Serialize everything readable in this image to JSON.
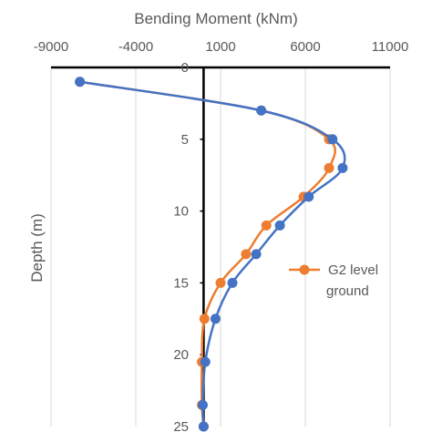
{
  "chart_data": {
    "type": "line",
    "xlabel": "Bending Moment (kNm)",
    "ylabel": "Depth (m)",
    "x_axis_position": "top",
    "y_axis_inverted": true,
    "xlim": [
      -9000,
      11000
    ],
    "ylim": [
      0,
      25
    ],
    "x_ticks": [
      -9000,
      -4000,
      1000,
      6000,
      11000
    ],
    "x_tick_labels": [
      "-9000",
      "-4000",
      "1000",
      "6000",
      "11000"
    ],
    "y_ticks": [
      0,
      5,
      10,
      15,
      20,
      25
    ],
    "y_tick_labels": [
      "0",
      "5",
      "10",
      "15",
      "20",
      "25"
    ],
    "grid": "vertical",
    "legend_position": "right",
    "series": [
      {
        "name": "",
        "color": "#ED7D31",
        "points": [
          [
            -7300,
            1
          ],
          [
            3400,
            3
          ],
          [
            7400,
            5
          ],
          [
            7400,
            7
          ],
          [
            5900,
            9
          ],
          [
            3700,
            11
          ],
          [
            2500,
            13
          ],
          [
            1000,
            15
          ],
          [
            50,
            17.5
          ],
          [
            -100,
            20.5
          ],
          [
            -100,
            23.5
          ],
          [
            0,
            25
          ]
        ]
      },
      {
        "name": "G2  level ground",
        "legend_lines": [
          "G2  level",
          "ground"
        ],
        "color": "#4472C4",
        "points": [
          [
            -7300,
            1
          ],
          [
            3400,
            3
          ],
          [
            7600,
            5
          ],
          [
            8200,
            7
          ],
          [
            6200,
            9
          ],
          [
            4500,
            11
          ],
          [
            3100,
            13
          ],
          [
            1700,
            15
          ],
          [
            700,
            17.5
          ],
          [
            100,
            20.5
          ],
          [
            -50,
            23.5
          ],
          [
            0,
            25
          ]
        ]
      }
    ]
  }
}
